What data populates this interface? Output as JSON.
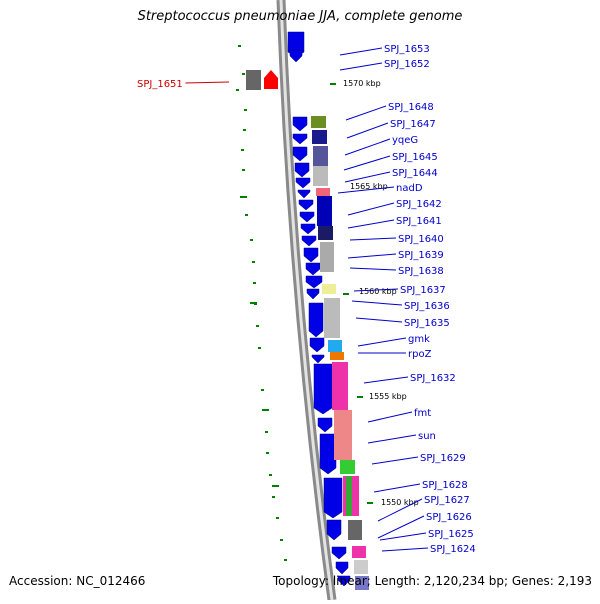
{
  "title": "Streptococcus pneumoniae JJA, complete genome",
  "footer": {
    "accession": "Accession: NC_012466",
    "stats": "Topology: linear; Length: 2,120,234 bp; Genes: 2,193"
  },
  "colors": {
    "blue": "#0000e6",
    "link": "#0000cc",
    "highlight": "#cc0000",
    "tick": "#008000",
    "backbone": "#8a8a8a"
  },
  "kbp_labels": [
    "1570 kbp",
    "1565 kbp",
    "1560 kbp",
    "1555 kbp",
    "1550 kbp"
  ],
  "gene_labels": [
    {
      "text": "SPJ_1653"
    },
    {
      "text": "SPJ_1652"
    },
    {
      "text": "SPJ_1651",
      "highlight": true
    },
    {
      "text": "SPJ_1648"
    },
    {
      "text": "SPJ_1647"
    },
    {
      "text": "yqeG"
    },
    {
      "text": "SPJ_1645"
    },
    {
      "text": "SPJ_1644"
    },
    {
      "text": "nadD"
    },
    {
      "text": "SPJ_1642"
    },
    {
      "text": "SPJ_1641"
    },
    {
      "text": "SPJ_1640"
    },
    {
      "text": "SPJ_1639"
    },
    {
      "text": "SPJ_1638"
    },
    {
      "text": "SPJ_1637"
    },
    {
      "text": "SPJ_1636"
    },
    {
      "text": "SPJ_1635"
    },
    {
      "text": "gmk"
    },
    {
      "text": "rpoZ"
    },
    {
      "text": "SPJ_1632"
    },
    {
      "text": "fmt"
    },
    {
      "text": "sun"
    },
    {
      "text": "SPJ_1629"
    },
    {
      "text": "SPJ_1628"
    },
    {
      "text": "SPJ_1627"
    },
    {
      "text": "SPJ_1626"
    },
    {
      "text": "SPJ_1625"
    },
    {
      "text": "SPJ_1624"
    }
  ]
}
